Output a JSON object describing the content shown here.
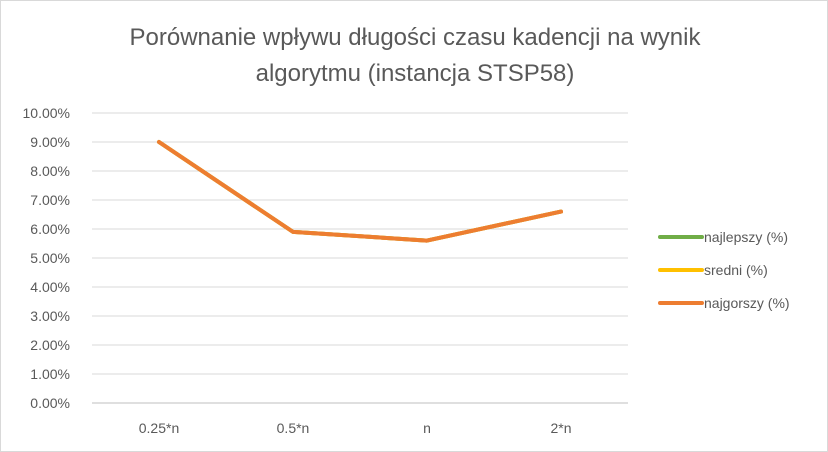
{
  "chart_data": {
    "type": "line",
    "title": "Porównanie wpływu długości czasu kadencji na wynik algorytmu (instancja STSP58)",
    "xlabel": "",
    "ylabel": "",
    "categories": [
      "0.25*n",
      "0.5*n",
      "n",
      "2*n"
    ],
    "ylim": [
      0,
      0.1
    ],
    "y_ticks": [
      "0.00%",
      "1.00%",
      "2.00%",
      "3.00%",
      "4.00%",
      "5.00%",
      "6.00%",
      "7.00%",
      "8.00%",
      "9.00%",
      "10.00%"
    ],
    "grid": true,
    "legend_position": "right",
    "series": [
      {
        "name": "najlepszy (%)",
        "color": "#70ad47",
        "values": [
          0.09,
          0.059,
          0.056,
          0.066
        ]
      },
      {
        "name": "sredni (%)",
        "color": "#ffc000",
        "values": [
          0.09,
          0.059,
          0.056,
          0.066
        ]
      },
      {
        "name": "najgorszy (%)",
        "color": "#ed7d31",
        "values": [
          0.09,
          0.059,
          0.056,
          0.066
        ]
      }
    ]
  }
}
